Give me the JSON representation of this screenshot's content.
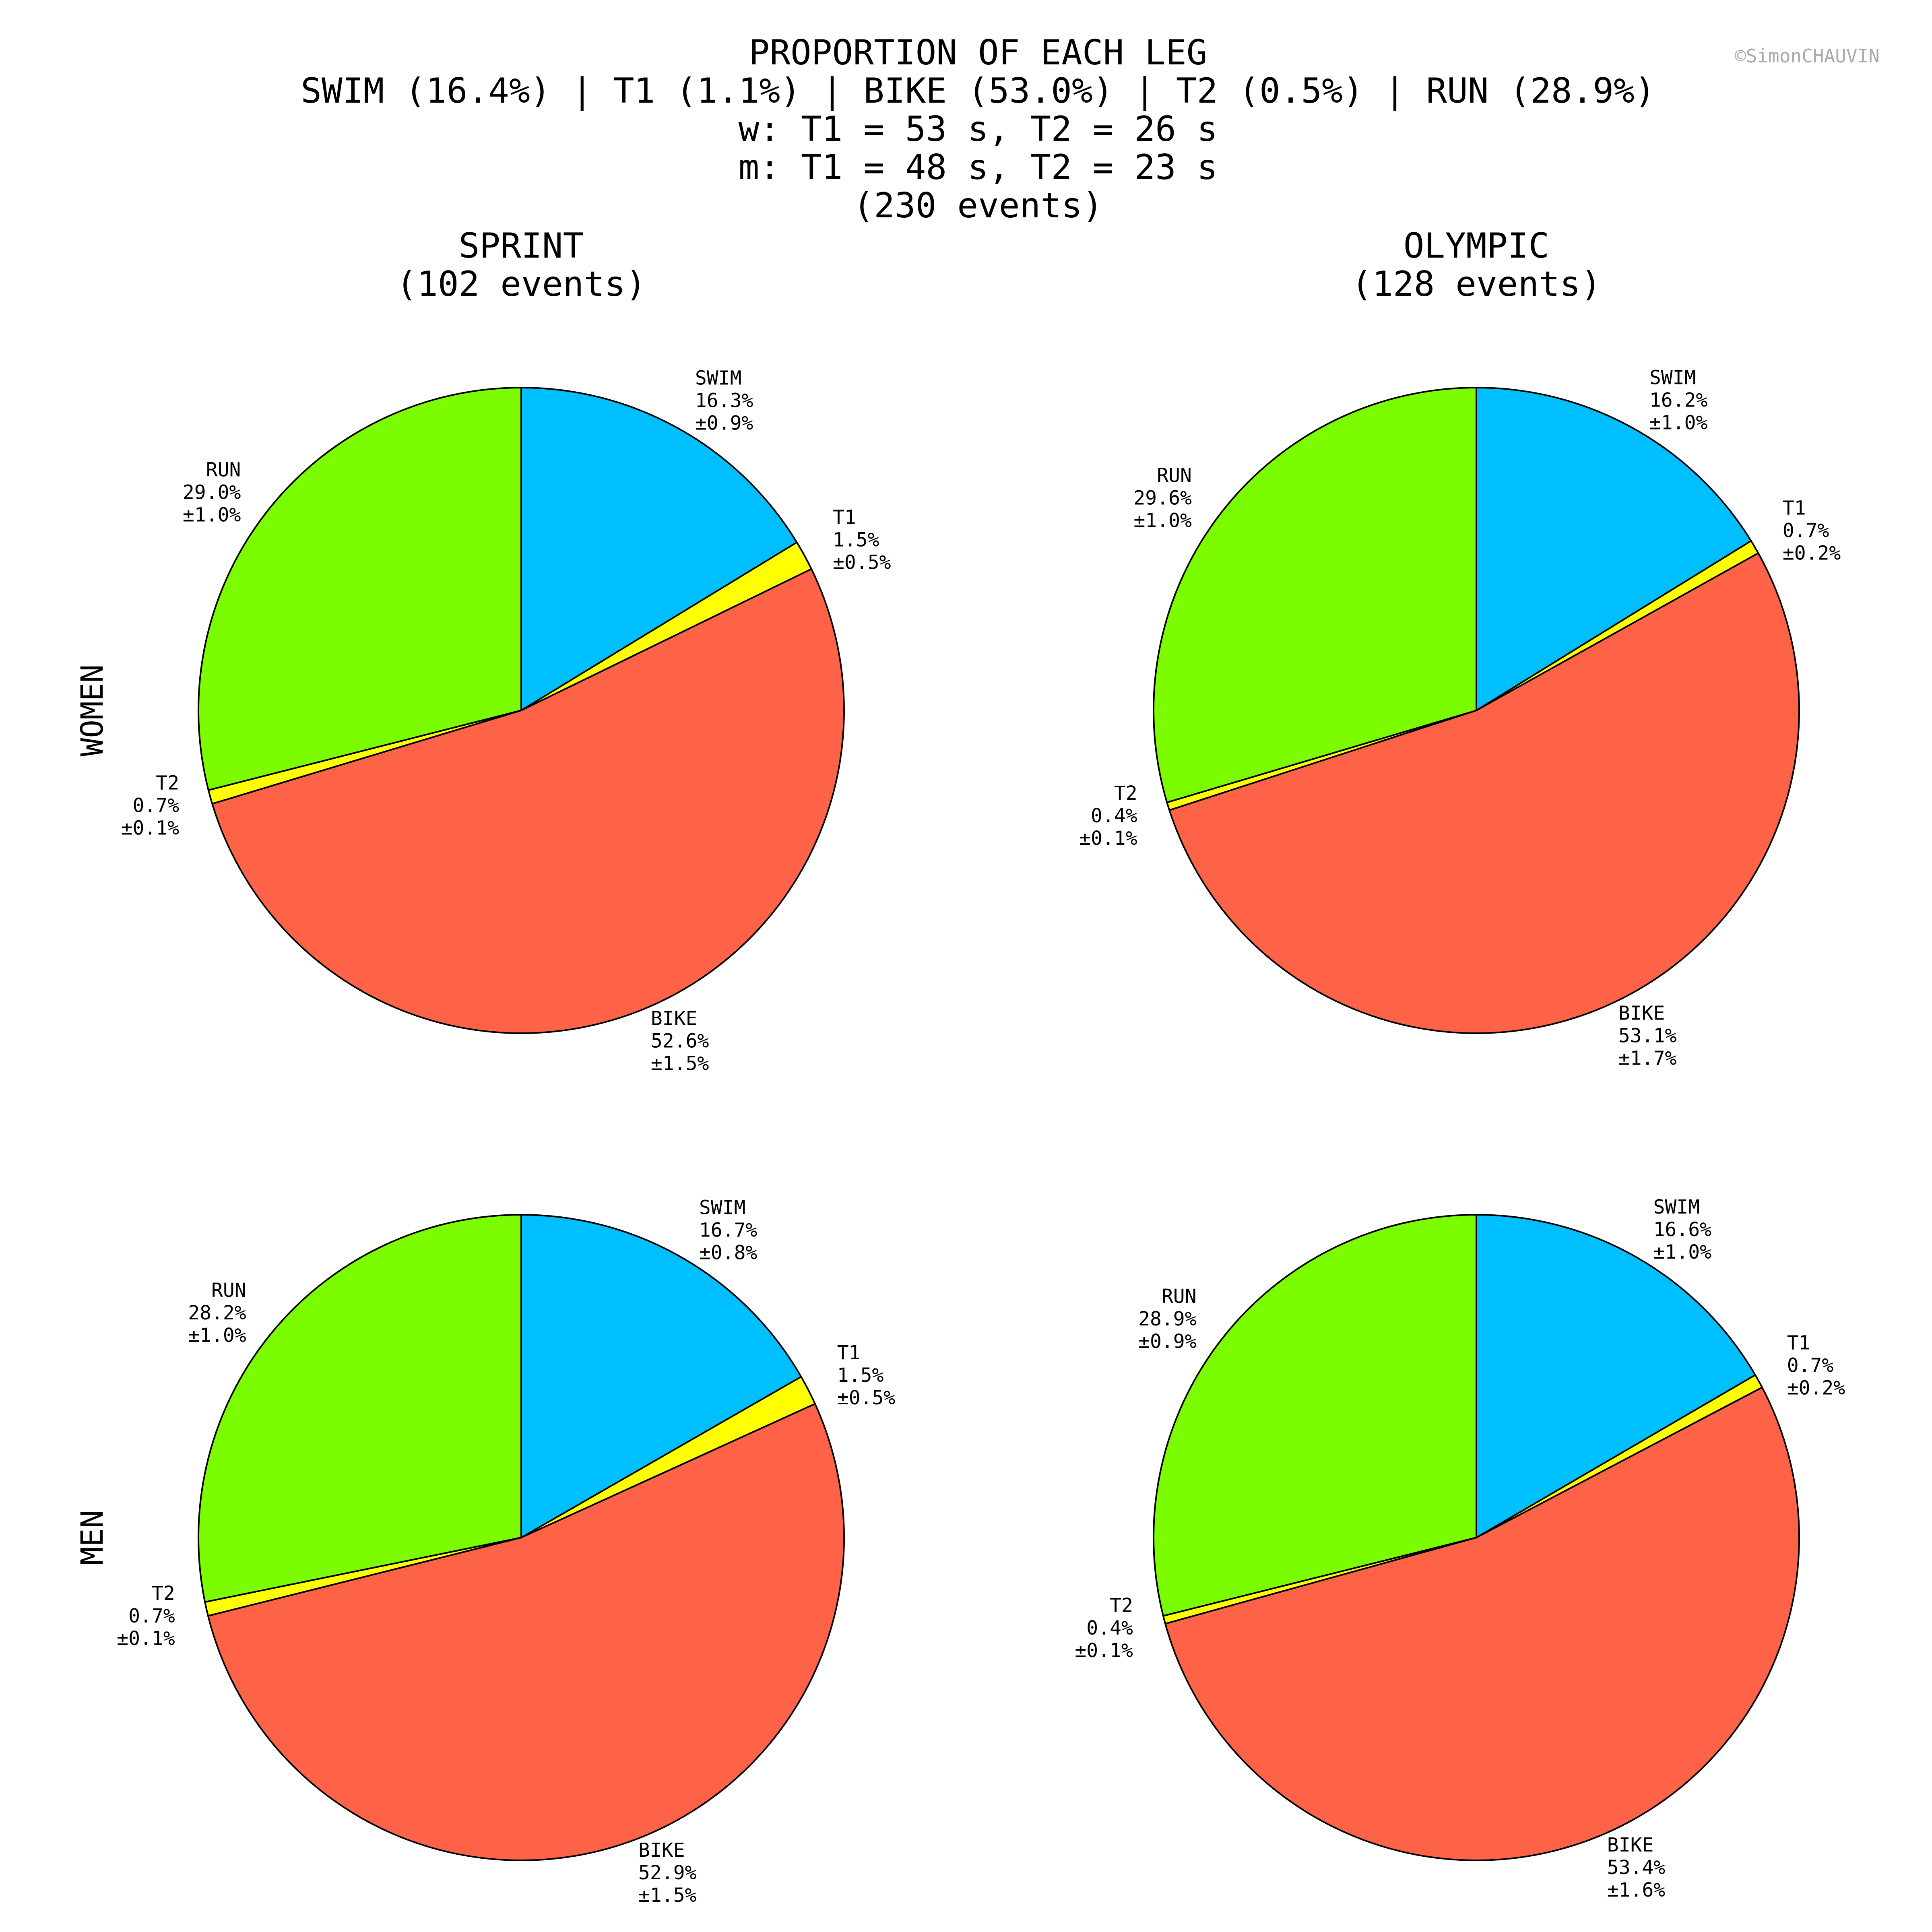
{
  "header": {
    "lines": [
      "PROPORTION OF EACH LEG",
      "SWIM (16.4%) | T1 (1.1%) | BIKE (53.0%) | T2 (0.5%) | RUN (28.9%)",
      "w: T1 = 53 s, T2 = 26 s",
      "m: T1 = 48 s, T2 = 23 s",
      "(230 events)"
    ],
    "credit": "©SimonCHAUVIN"
  },
  "columns": [
    {
      "title": "SPRINT",
      "subtitle": "(102 events)"
    },
    {
      "title": "OLYMPIC",
      "subtitle": "(128 events)"
    }
  ],
  "rows": [
    "WOMEN",
    "MEN"
  ],
  "colors": {
    "SWIM": "#00BFFF",
    "T1": "#FFFF00",
    "BIKE": "#FF6347",
    "T2": "#FFFF00",
    "RUN": "#7CFC00",
    "edge": "#000000",
    "credit": "#aaaaaa"
  },
  "chart_data": [
    {
      "type": "pie",
      "row": "WOMEN",
      "column": "SPRINT",
      "slices": [
        {
          "label": "SWIM",
          "value": 16.3,
          "pct": "16.3%",
          "err": "±0.9%"
        },
        {
          "label": "T1",
          "value": 1.5,
          "pct": "1.5%",
          "err": "±0.5%"
        },
        {
          "label": "BIKE",
          "value": 52.6,
          "pct": "52.6%",
          "err": "±1.5%"
        },
        {
          "label": "T2",
          "value": 0.7,
          "pct": "0.7%",
          "err": "±0.1%"
        },
        {
          "label": "RUN",
          "value": 29.0,
          "pct": "29.0%",
          "err": "±1.0%"
        }
      ]
    },
    {
      "type": "pie",
      "row": "WOMEN",
      "column": "OLYMPIC",
      "slices": [
        {
          "label": "SWIM",
          "value": 16.2,
          "pct": "16.2%",
          "err": "±1.0%"
        },
        {
          "label": "T1",
          "value": 0.7,
          "pct": "0.7%",
          "err": "±0.2%"
        },
        {
          "label": "BIKE",
          "value": 53.1,
          "pct": "53.1%",
          "err": "±1.7%"
        },
        {
          "label": "T2",
          "value": 0.4,
          "pct": "0.4%",
          "err": "±0.1%"
        },
        {
          "label": "RUN",
          "value": 29.6,
          "pct": "29.6%",
          "err": "±1.0%"
        }
      ]
    },
    {
      "type": "pie",
      "row": "MEN",
      "column": "SPRINT",
      "slices": [
        {
          "label": "SWIM",
          "value": 16.7,
          "pct": "16.7%",
          "err": "±0.8%"
        },
        {
          "label": "T1",
          "value": 1.5,
          "pct": "1.5%",
          "err": "±0.5%"
        },
        {
          "label": "BIKE",
          "value": 52.9,
          "pct": "52.9%",
          "err": "±1.5%"
        },
        {
          "label": "T2",
          "value": 0.7,
          "pct": "0.7%",
          "err": "±0.1%"
        },
        {
          "label": "RUN",
          "value": 28.2,
          "pct": "28.2%",
          "err": "±1.0%"
        }
      ]
    },
    {
      "type": "pie",
      "row": "MEN",
      "column": "OLYMPIC",
      "slices": [
        {
          "label": "SWIM",
          "value": 16.6,
          "pct": "16.6%",
          "err": "±1.0%"
        },
        {
          "label": "T1",
          "value": 0.7,
          "pct": "0.7%",
          "err": "±0.2%"
        },
        {
          "label": "BIKE",
          "value": 53.4,
          "pct": "53.4%",
          "err": "±1.6%"
        },
        {
          "label": "T2",
          "value": 0.4,
          "pct": "0.4%",
          "err": "±0.1%"
        },
        {
          "label": "RUN",
          "value": 28.9,
          "pct": "28.9%",
          "err": "±0.9%"
        }
      ]
    }
  ]
}
